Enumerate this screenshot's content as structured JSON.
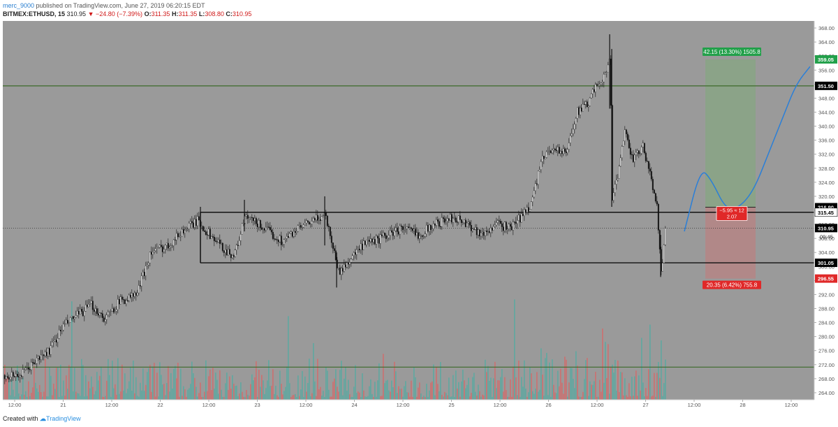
{
  "header": {
    "author": "merc_9000",
    "published": " published on TradingView.com, June 27, 2019 06:20:15 EDT",
    "symbol": "BITMEX:ETHUSD, 15",
    "last": "310.95",
    "change": "▼ −24.80 (−7.39%)",
    "o_label": "O:",
    "o": "311.35",
    "h_label": "H:",
    "h": "311.35",
    "l_label": "L:",
    "l": "308.80",
    "c_label": "C:",
    "c": "310.95"
  },
  "footer": {
    "created": "Created with",
    "brand": "TradingView"
  },
  "colors": {
    "plot_bg": "#9a9a9a",
    "hline": "#3c6a2a",
    "box": "#111111",
    "green_zone": "#8aa486",
    "red_zone": "#b48686",
    "green_label": "#22a04a",
    "red_label": "#e02828",
    "projection": "#2a7fd8",
    "vol_up": "#5fa8a0",
    "vol_down": "#cc7070"
  },
  "chart_data": {
    "type": "candlestick",
    "ylim": [
      262,
      370
    ],
    "y_ticks": [
      "264.00",
      "268.00",
      "272.00",
      "276.00",
      "280.00",
      "284.00",
      "288.00",
      "292.00",
      "296.00",
      "300.00",
      "304.00",
      "308.00",
      "312.00",
      "316.00",
      "320.00",
      "324.00",
      "328.00",
      "332.00",
      "336.00",
      "340.00",
      "344.00",
      "348.00",
      "352.00",
      "356.00",
      "360.00",
      "364.00",
      "368.00"
    ],
    "x_ticks": [
      "12:00",
      "21",
      "12:00",
      "22",
      "12:00",
      "23",
      "12:00",
      "24",
      "12:00",
      "25",
      "12:00",
      "26",
      "12:00",
      "27",
      "12:00",
      "28",
      "12:00"
    ],
    "price_path": [
      [
        0,
        269
      ],
      [
        30,
        269
      ],
      [
        50,
        273
      ],
      [
        70,
        276
      ],
      [
        90,
        283
      ],
      [
        110,
        286
      ],
      [
        130,
        289
      ],
      [
        150,
        285
      ],
      [
        170,
        290
      ],
      [
        195,
        292
      ],
      [
        215,
        304
      ],
      [
        240,
        306
      ],
      [
        260,
        310
      ],
      [
        282,
        313
      ],
      [
        300,
        309
      ],
      [
        320,
        305
      ],
      [
        335,
        303
      ],
      [
        350,
        314
      ],
      [
        370,
        312
      ],
      [
        390,
        309
      ],
      [
        405,
        307
      ],
      [
        420,
        310
      ],
      [
        440,
        312
      ],
      [
        465,
        315
      ],
      [
        478,
        304
      ],
      [
        485,
        298
      ],
      [
        500,
        302
      ],
      [
        520,
        306
      ],
      [
        545,
        308
      ],
      [
        575,
        311
      ],
      [
        600,
        309
      ],
      [
        620,
        312
      ],
      [
        650,
        314
      ],
      [
        670,
        312
      ],
      [
        690,
        309
      ],
      [
        710,
        312
      ],
      [
        730,
        311
      ],
      [
        745,
        314
      ],
      [
        760,
        318
      ],
      [
        775,
        330
      ],
      [
        790,
        334
      ],
      [
        810,
        332
      ],
      [
        825,
        344
      ],
      [
        840,
        346
      ],
      [
        855,
        352
      ],
      [
        868,
        355
      ],
      [
        873,
        360
      ],
      [
        876,
        320
      ],
      [
        885,
        326
      ],
      [
        895,
        340
      ],
      [
        905,
        330
      ],
      [
        920,
        334
      ],
      [
        930,
        326
      ],
      [
        940,
        318
      ],
      [
        946,
        298
      ],
      [
        952,
        310
      ]
    ],
    "horizontal_levels": [
      351.5,
      271.3
    ],
    "range_box": {
      "x_start": 22.4,
      "top": 315.45,
      "bottom": 301.05
    },
    "price_tags": [
      {
        "value": 359.05,
        "label": "359.05",
        "color": "#22a04a",
        "text_color": "#ffffff"
      },
      {
        "value": 351.5,
        "label": "351.50",
        "color": "#000000",
        "text_color": "#ffffff"
      },
      {
        "value": 316.9,
        "label": "316.90",
        "color": "#000000",
        "text_color": "#ffffff"
      },
      {
        "value": 315.45,
        "label": "315.45",
        "color": "#ffffff",
        "text_color": "#000000"
      },
      {
        "value": 310.95,
        "label": "310.95",
        "color": "#000000",
        "text_color": "#ffffff"
      },
      {
        "value": 301.05,
        "label": "301.05",
        "color": "#000000",
        "text_color": "#ffffff"
      },
      {
        "value": 296.55,
        "label": "296.55",
        "color": "#e02828",
        "text_color": "#ffffff"
      }
    ],
    "countdown": "09:45",
    "position": {
      "entry": 316.9,
      "target": 359.05,
      "stop": 296.55,
      "target_label": "42.15 (13.30%) 1505.8",
      "stop_label": "20.35 (6.42%) 755.8",
      "entry_label_1": "−5.95 ≈ 12",
      "entry_label_2": "2.07"
    },
    "projection_path": [
      [
        980,
        310
      ],
      [
        1003,
        328
      ],
      [
        1018,
        325
      ],
      [
        1040,
        316
      ],
      [
        1060,
        317
      ],
      [
        1080,
        322
      ],
      [
        1100,
        332
      ],
      [
        1120,
        342
      ],
      [
        1140,
        352
      ],
      [
        1160,
        357
      ]
    ]
  }
}
